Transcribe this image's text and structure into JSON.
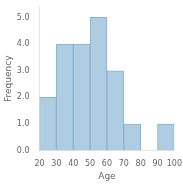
{
  "chart_data": {
    "type": "histogram",
    "bins": [
      20,
      30,
      40,
      50,
      60,
      70,
      80,
      90,
      100
    ],
    "values": [
      2,
      4,
      4,
      5,
      3,
      1,
      0,
      1
    ],
    "color": "#aecde3",
    "xlabel": "Age",
    "ylabel": "Frequency",
    "xlim": [
      20,
      100
    ],
    "ylim": [
      0,
      5.4
    ],
    "xticks": [
      20,
      30,
      40,
      50,
      60,
      70,
      80,
      90,
      100
    ],
    "yticks": [
      {
        "value": 0,
        "label": "0.0"
      },
      {
        "value": 1.0,
        "label": "1.0"
      },
      {
        "value": 2.0,
        "label": "2.0"
      },
      {
        "value": 3.0,
        "label": "3.0"
      },
      {
        "value": 4.0,
        "label": "4.0"
      },
      {
        "value": 5.0,
        "label": "5.0"
      }
    ],
    "grid": false
  }
}
